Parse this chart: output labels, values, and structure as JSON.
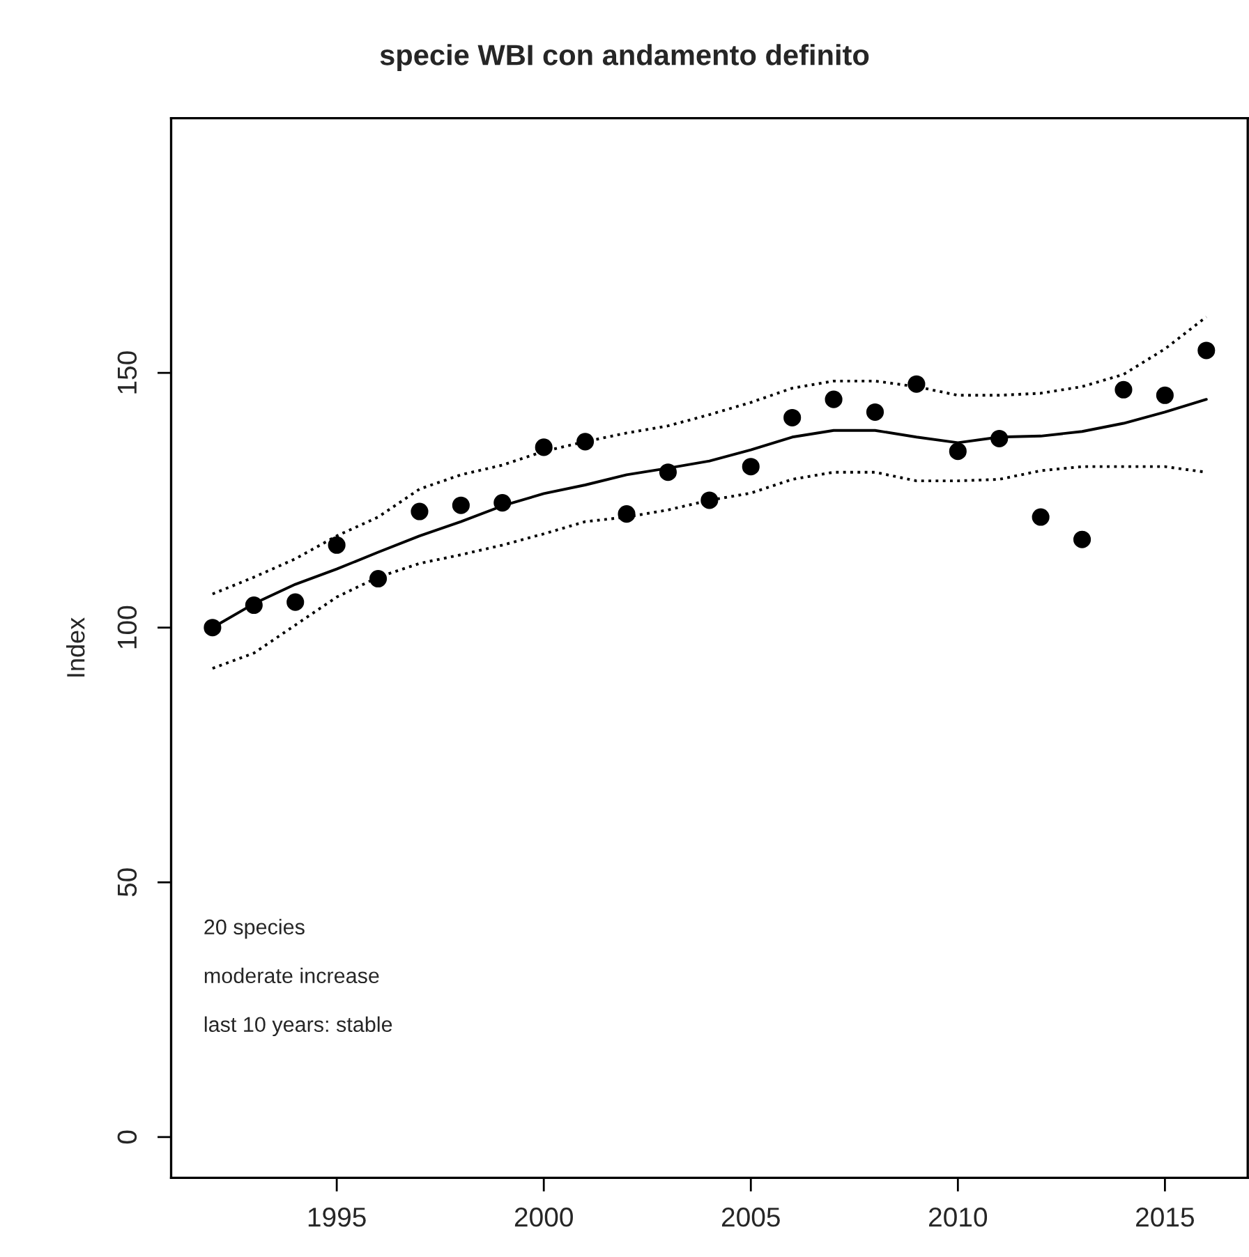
{
  "chart_data": {
    "type": "scatter",
    "title": "specie WBI con andamento definito",
    "ylabel": "Index",
    "x": [
      1992,
      1993,
      1994,
      1995,
      1996,
      1997,
      1998,
      1999,
      2000,
      2001,
      2002,
      2003,
      2004,
      2005,
      2006,
      2007,
      2008,
      2009,
      2010,
      2011,
      2012,
      2013,
      2014,
      2015,
      2016
    ],
    "series": [
      {
        "color": "#000000",
        "marker": "circle",
        "values": [
          100,
          104.4,
          105,
          116.2,
          109.6,
          122.8,
          124,
          124.5,
          135.4,
          136.5,
          122.3,
          130.5,
          125,
          131.6,
          141.2,
          144.8,
          142.3,
          147.8,
          134.6,
          137.1,
          121.7,
          117.3,
          146.7,
          145.6,
          154.4
        ]
      },
      {
        "type": "line",
        "color": "#000000",
        "line_style": "solid",
        "values": [
          100,
          104.7,
          108.5,
          111.5,
          114.8,
          118,
          120.8,
          123.9,
          126.3,
          128,
          130,
          131.3,
          132.7,
          134.9,
          137.4,
          138.7,
          138.7,
          137.4,
          136.3,
          137.4,
          137.6,
          138.5,
          140.1,
          142.3,
          144.8
        ]
      },
      {
        "type": "line",
        "color": "#000000",
        "line_style": "dotted",
        "values": [
          106.6,
          109.9,
          113.5,
          118,
          121.7,
          127.2,
          130,
          131.9,
          134.6,
          136.5,
          138.2,
          139.6,
          141.8,
          144.2,
          147,
          148.4,
          148.4,
          147.3,
          145.6,
          145.6,
          146,
          147.3,
          149.7,
          154.7,
          161
        ]
      },
      {
        "type": "line",
        "color": "#000000",
        "line_style": "dotted",
        "values": [
          92,
          95,
          100.5,
          106,
          109.9,
          112.6,
          114.3,
          116.2,
          118.4,
          120.8,
          121.7,
          123.1,
          125,
          126.4,
          129.1,
          130.5,
          130.5,
          128.8,
          128.8,
          129.1,
          130.8,
          131.6,
          131.6,
          131.6,
          130.5
        ]
      }
    ],
    "xlim": [
      1991,
      2017
    ],
    "xticks": [
      1995,
      2000,
      2005,
      2010,
      2015
    ],
    "ylim": [
      -8,
      200
    ],
    "yticks": [
      0,
      50,
      100,
      150
    ],
    "annotations": [
      "20 species",
      "moderate increase",
      "last 10 years: stable"
    ],
    "grid": false,
    "legend": false
  }
}
